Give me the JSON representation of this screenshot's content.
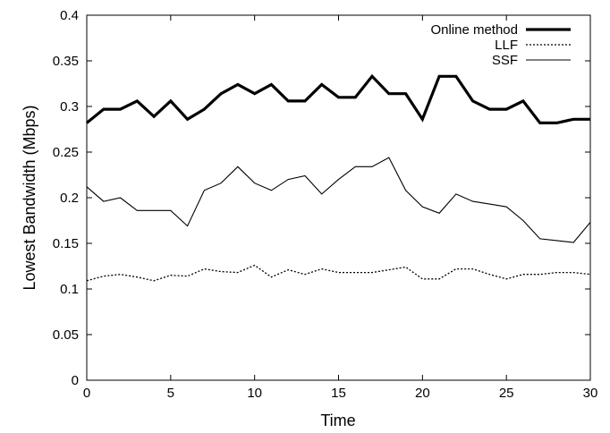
{
  "chart_data": {
    "type": "line",
    "title": "",
    "xlabel": "Time",
    "ylabel": "Lowest Bandwidth (Mbps)",
    "xlim": [
      0,
      30
    ],
    "ylim": [
      0,
      0.4
    ],
    "xticks": [
      "0",
      "5",
      "10",
      "15",
      "20",
      "25",
      "30"
    ],
    "yticks": [
      "0",
      "0.05",
      "0.1",
      "0.15",
      "0.2",
      "0.25",
      "0.3",
      "0.35",
      "0.4"
    ],
    "grid": false,
    "legend_position": "top-right",
    "x": [
      0,
      1,
      2,
      3,
      4,
      5,
      6,
      7,
      8,
      9,
      10,
      11,
      12,
      13,
      14,
      15,
      16,
      17,
      18,
      19,
      20,
      21,
      22,
      23,
      24,
      25,
      26,
      27,
      28,
      29,
      30
    ],
    "series": [
      {
        "name": "Online method",
        "style": "thick-solid",
        "values": [
          0.282,
          0.297,
          0.297,
          0.306,
          0.289,
          0.306,
          0.286,
          0.297,
          0.314,
          0.324,
          0.314,
          0.324,
          0.306,
          0.306,
          0.324,
          0.31,
          0.31,
          0.333,
          0.314,
          0.314,
          0.286,
          0.333,
          0.333,
          0.306,
          0.297,
          0.297,
          0.306,
          0.282,
          0.282,
          0.286,
          0.286
        ]
      },
      {
        "name": "LLF",
        "style": "dotted",
        "values": [
          0.109,
          0.114,
          0.116,
          0.113,
          0.109,
          0.115,
          0.114,
          0.122,
          0.119,
          0.118,
          0.126,
          0.113,
          0.121,
          0.116,
          0.122,
          0.118,
          0.118,
          0.118,
          0.121,
          0.124,
          0.111,
          0.111,
          0.122,
          0.122,
          0.116,
          0.111,
          0.116,
          0.116,
          0.118,
          0.118,
          0.116
        ]
      },
      {
        "name": "SSF",
        "style": "thin-solid",
        "values": [
          0.212,
          0.196,
          0.2,
          0.186,
          0.186,
          0.186,
          0.169,
          0.208,
          0.216,
          0.234,
          0.216,
          0.208,
          0.22,
          0.224,
          0.204,
          0.22,
          0.234,
          0.234,
          0.244,
          0.208,
          0.19,
          0.183,
          0.204,
          0.196,
          0.193,
          0.19,
          0.175,
          0.155,
          0.153,
          0.151,
          0.173
        ]
      }
    ]
  }
}
